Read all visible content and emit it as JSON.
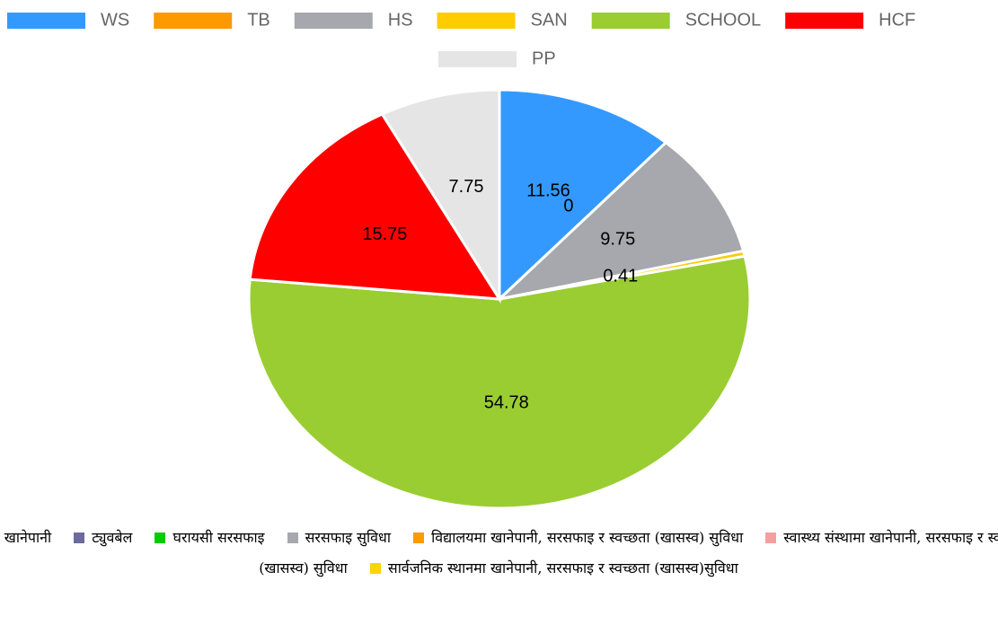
{
  "chart_data": {
    "type": "pie",
    "categories": [
      "WS",
      "TB",
      "HS",
      "SAN",
      "SCHOOL",
      "HCF",
      "PP"
    ],
    "values": [
      11.56,
      0,
      9.75,
      0.41,
      54.78,
      15.75,
      7.75
    ],
    "colors": [
      "#3399ff",
      "#ff9900",
      "#a6a8ad",
      "#ffcc00",
      "#9acd32",
      "#ff0000",
      "#e5e5e5"
    ],
    "legend": "top"
  },
  "secondary_legend": [
    {
      "name": "खानेपानी",
      "color": "#3399ff"
    },
    {
      "name": "ट्युवबेल",
      "color": "#6b6b9e"
    },
    {
      "name": "घरायसी सरसफाइ",
      "color": "#00cc00"
    },
    {
      "name": "सरसफाइ सुविधा",
      "color": "#a6a8ad"
    },
    {
      "name": "विद्यालयमा खानेपानी, सरसफाइ र स्वच्छता (खासस्व) सुविधा",
      "color": "#ff9900"
    },
    {
      "name": "स्वास्थ्य संस्थामा खानेपानी, सरसफाइ र स्वच्छता (खासस्व) सुविधा",
      "color": "#f4a0a0"
    },
    {
      "name": "सार्वजनिक स्थानमा खानेपानी, सरसफाइ र स्वच्छता (खासस्व)सुविधा",
      "color": "#ffd400"
    }
  ]
}
